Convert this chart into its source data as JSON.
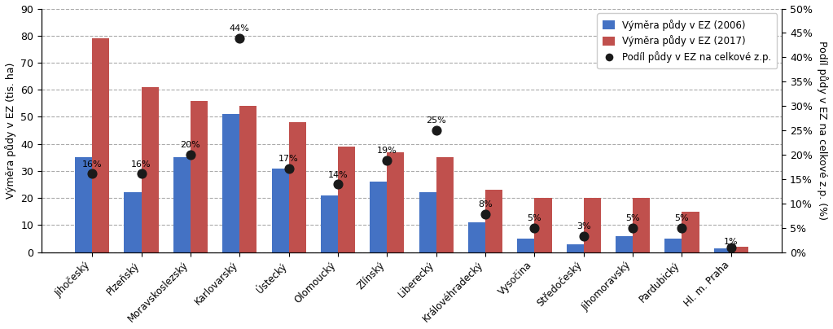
{
  "categories": [
    "Jihočeský",
    "Plzeňský",
    "Moravskoslezský",
    "Karlovarský",
    "Ústecký",
    "Olomoucký",
    "Zlínský",
    "Liberecký",
    "Královéhradecký",
    "Vysočina",
    "Středočeský",
    "Jihomoravský",
    "Pardubický",
    "Hl. m. Praha"
  ],
  "values_2006": [
    35,
    22,
    35,
    51,
    31,
    21,
    26,
    22,
    11,
    5,
    3,
    6,
    5,
    1.5
  ],
  "values_2017": [
    79,
    61,
    56,
    54,
    48,
    39,
    37,
    35,
    23,
    20,
    20,
    20,
    15,
    2
  ],
  "podil_pct": [
    16,
    16,
    20,
    44,
    17,
    14,
    19,
    25,
    8,
    5,
    3,
    5,
    5,
    1
  ],
  "dot_y_left": [
    29,
    29,
    36,
    79,
    31,
    25,
    34,
    45,
    14,
    9,
    6,
    9,
    9,
    1.8
  ],
  "color_2006": "#4472C4",
  "color_2017": "#C0504D",
  "color_dot": "#1a1a1a",
  "ylabel_left": "Výměra půdy v EZ (tis. ha)",
  "ylabel_right": "Podíl půdy v EZ na celkové z.p. (%)",
  "ylim_left": [
    0,
    90
  ],
  "ylim_right": [
    0,
    50
  ],
  "yticks_left": [
    0,
    10,
    20,
    30,
    40,
    50,
    60,
    70,
    80,
    90
  ],
  "yticks_right_vals": [
    0,
    5,
    10,
    15,
    20,
    25,
    30,
    35,
    40,
    45,
    50
  ],
  "yticks_right_labels": [
    "0%",
    "5%",
    "10%",
    "15%",
    "20%",
    "25%",
    "30%",
    "35%",
    "40%",
    "45%",
    "50%"
  ],
  "legend_labels": [
    "Výměra půdy v EZ (2006)",
    "Výměra půdy v EZ (2017)",
    "Podíl půdy v EZ na celkové z.p."
  ],
  "bg_color": "#ffffff",
  "grid_color": "#aaaaaa",
  "pct_label_offsets_x": [
    -0.3,
    -0.3,
    -0.3,
    -0.3,
    -0.3,
    -0.3,
    -0.3,
    -0.3,
    -0.3,
    -0.3,
    -0.3,
    -0.3,
    -0.3,
    -0.3
  ]
}
